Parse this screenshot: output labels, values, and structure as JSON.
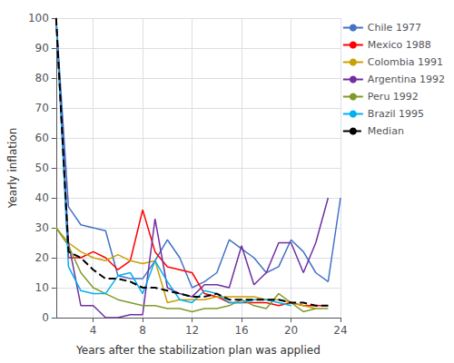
{
  "chart_data": {
    "type": "line",
    "xlabel": "Years after the stabilization plan was applied",
    "ylabel": "Yearly inflation",
    "xlim": [
      1,
      24
    ],
    "ylim": [
      0,
      100
    ],
    "xticks": [
      4,
      8,
      12,
      16,
      20,
      24
    ],
    "yticks": [
      0,
      10,
      20,
      30,
      40,
      50,
      60,
      70,
      80,
      90,
      100
    ],
    "grid": true,
    "legend": "upper right",
    "series": [
      {
        "name": "Chile 1977",
        "color": "#4472C4",
        "line_style": "solid",
        "x": [
          1,
          2,
          3,
          4,
          5,
          6,
          7,
          8,
          9,
          10,
          11,
          12,
          13,
          14,
          15,
          16,
          17,
          18,
          19,
          20,
          21,
          22,
          23,
          24
        ],
        "values": [
          100,
          37,
          31,
          30,
          29,
          14,
          13,
          13,
          19,
          26,
          20,
          10,
          12,
          15,
          26,
          23,
          20,
          15,
          17,
          26,
          22,
          15,
          12,
          40
        ]
      },
      {
        "name": "Mexico 1988",
        "color": "#FF0000",
        "line_style": "solid",
        "x": [
          1,
          2,
          3,
          4,
          5,
          6,
          7,
          8,
          9,
          10,
          11,
          12,
          13,
          14,
          15,
          16,
          17,
          18,
          19,
          20,
          21,
          22,
          23
        ],
        "values": [
          100,
          20,
          20,
          22,
          20,
          16,
          19,
          36,
          22,
          17,
          16,
          15,
          8,
          7,
          5,
          5,
          5,
          5,
          4,
          5,
          4,
          4,
          4
        ]
      },
      {
        "name": "Colombia 1991",
        "color": "#C8A000",
        "line_style": "solid",
        "x": [
          1,
          2,
          3,
          4,
          5,
          6,
          7,
          8,
          9,
          10,
          11,
          12,
          13,
          14,
          15,
          16,
          17,
          18,
          19,
          20,
          21,
          22
        ],
        "values": [
          30,
          25,
          22,
          20,
          19,
          21,
          19,
          18,
          19,
          5,
          6,
          6,
          6,
          7,
          7,
          7,
          7,
          6,
          6,
          5,
          4,
          3
        ]
      },
      {
        "name": "Argentina 1992",
        "color": "#7030A0",
        "line_style": "solid",
        "x": [
          1,
          2,
          3,
          4,
          5,
          6,
          7,
          8,
          9,
          10,
          11,
          12,
          13,
          14,
          15,
          16,
          17,
          18,
          19,
          20,
          21,
          22,
          23
        ],
        "values": [
          100,
          25,
          4,
          4,
          0,
          0,
          1,
          1,
          33,
          10,
          8,
          7,
          11,
          11,
          10,
          24,
          11,
          15,
          25,
          25,
          15,
          25,
          40
        ]
      },
      {
        "name": "Peru 1992",
        "color": "#7F9B2A",
        "line_style": "solid",
        "x": [
          1,
          2,
          3,
          4,
          5,
          6,
          7,
          8,
          9,
          10,
          11,
          12,
          13,
          14,
          15,
          16,
          17,
          18,
          19,
          20,
          21,
          22,
          23
        ],
        "values": [
          30,
          24,
          15,
          10,
          8,
          6,
          5,
          4,
          4,
          3,
          3,
          2,
          3,
          3,
          4,
          6,
          4,
          3,
          8,
          5,
          2,
          3,
          3
        ]
      },
      {
        "name": "Brazil 1995",
        "color": "#00B0F0",
        "line_style": "solid",
        "x": [
          1,
          2,
          3,
          4,
          5,
          6,
          7,
          8,
          9,
          10,
          11,
          12,
          13,
          14,
          15,
          16,
          17,
          18,
          19,
          20
        ],
        "values": [
          100,
          17,
          9,
          8,
          8,
          14,
          15,
          8,
          19,
          12,
          6,
          5,
          9,
          8,
          5,
          5,
          6,
          6,
          5,
          4
        ]
      },
      {
        "name": "Median",
        "color": "#000000",
        "line_style": "dashed",
        "x": [
          1,
          2,
          3,
          4,
          5,
          6,
          7,
          8,
          9,
          10,
          11,
          12,
          13,
          14,
          15,
          16,
          17,
          18,
          19,
          20,
          21,
          22,
          23
        ],
        "values": [
          100,
          22,
          20,
          16,
          13,
          13,
          12,
          10,
          10,
          9,
          8,
          7,
          7,
          8,
          6,
          6,
          6,
          6,
          6,
          5,
          5,
          4,
          4
        ]
      }
    ]
  }
}
